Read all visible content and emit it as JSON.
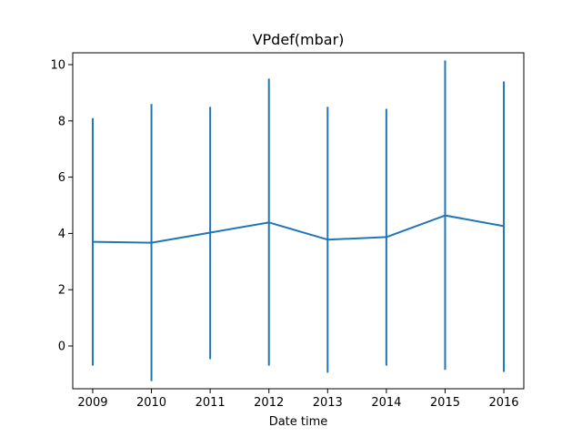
{
  "chart_data": {
    "type": "line",
    "title": "VPdef(mbar)",
    "xlabel": "Date time",
    "ylabel": "",
    "x": [
      2009,
      2010,
      2011,
      2012,
      2013,
      2014,
      2015,
      2016
    ],
    "x_tick_labels": [
      "2009",
      "2010",
      "2011",
      "2012",
      "2013",
      "2014",
      "2015",
      "2016"
    ],
    "series": [
      {
        "values": [
          3.7,
          3.67,
          4.03,
          4.39,
          3.78,
          3.87,
          4.64,
          4.26
        ],
        "error_low": [
          -0.7,
          -1.25,
          -0.47,
          -0.7,
          -0.95,
          -0.7,
          -0.85,
          -0.92
        ],
        "error_high": [
          8.1,
          8.6,
          8.5,
          9.5,
          8.5,
          8.43,
          10.15,
          9.4
        ]
      }
    ],
    "y_ticks": [
      0,
      2,
      4,
      6,
      8,
      10
    ],
    "y_tick_labels": [
      "0",
      "2",
      "4",
      "6",
      "8",
      "10"
    ],
    "xlim": [
      2008.66,
      2016.34
    ],
    "ylim": [
      -1.52,
      10.42
    ],
    "line_color": "#1f77b4",
    "grid": false,
    "legend": "none"
  }
}
